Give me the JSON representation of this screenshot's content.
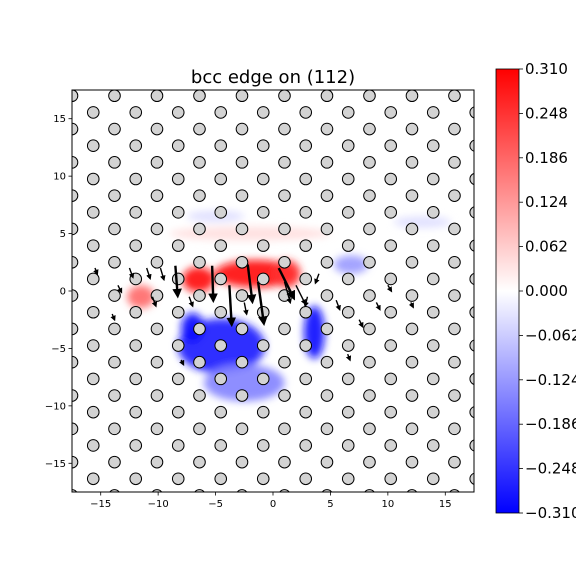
{
  "chart_data": {
    "type": "heatmap",
    "title": "bcc edge on (112)",
    "xlim": [
      -17.5,
      17.5
    ],
    "ylim": [
      -17.5,
      17.5
    ],
    "x_ticks": [
      -15,
      -10,
      -5,
      0,
      5,
      10,
      15
    ],
    "y_ticks": [
      -15,
      -10,
      -5,
      0,
      5,
      10,
      15
    ],
    "x_tick_labels": [
      "−15",
      "−10",
      "−5",
      "0",
      "5",
      "10",
      "15"
    ],
    "y_tick_labels": [
      "−15",
      "−10",
      "−5",
      "0",
      "5",
      "10",
      "15"
    ],
    "colorbar": {
      "cmap": "bwr",
      "vmin": -0.31,
      "vmax": 0.31,
      "ticks": [
        0.31,
        0.248,
        0.186,
        0.124,
        0.062,
        0.0,
        -0.062,
        -0.124,
        -0.186,
        -0.248,
        -0.31
      ],
      "tick_labels": [
        "0.310",
        "0.248",
        "0.186",
        "0.124",
        "0.062",
        "0.000",
        "−0.062",
        "−0.124",
        "−0.186",
        "−0.248",
        "−0.310"
      ],
      "colors": {
        "low": "#0000ff",
        "mid": "#ffffff",
        "high": "#ff0000"
      }
    },
    "atoms": {
      "lattice_a1": [
        3.7,
        0
      ],
      "lattice_a2": [
        1.85,
        1.45
      ],
      "origin": [
        1.0,
        -12.0
      ],
      "face_color": "#d3d3d3",
      "edge_color": "#000000"
    },
    "field_blobs": [
      {
        "x": -1.5,
        "y": 1.5,
        "sx": 3.6,
        "sy": 1.2,
        "value": 0.3
      },
      {
        "x": -6.5,
        "y": 1.0,
        "sx": 1.4,
        "sy": 1.1,
        "value": 0.3
      },
      {
        "x": 1.2,
        "y": 1.5,
        "sx": 1.2,
        "sy": 1.2,
        "value": 0.25
      },
      {
        "x": -11.5,
        "y": -0.5,
        "sx": 1.2,
        "sy": 1.0,
        "value": 0.18
      },
      {
        "x": -2.0,
        "y": 5.0,
        "sx": 7.0,
        "sy": 0.6,
        "value": 0.04
      },
      {
        "x": -4.5,
        "y": -4.8,
        "sx": 3.8,
        "sy": 2.4,
        "value": -0.27
      },
      {
        "x": -7.0,
        "y": -3.2,
        "sx": 1.0,
        "sy": 1.3,
        "value": -0.3
      },
      {
        "x": -2.5,
        "y": -8.0,
        "sx": 3.5,
        "sy": 1.6,
        "value": -0.15
      },
      {
        "x": 3.6,
        "y": -3.6,
        "sx": 0.9,
        "sy": 2.3,
        "value": -0.3
      },
      {
        "x": 6.8,
        "y": 2.3,
        "sx": 1.5,
        "sy": 0.8,
        "value": -0.12
      },
      {
        "x": -5.0,
        "y": 6.5,
        "sx": 2.5,
        "sy": 0.5,
        "value": -0.04
      },
      {
        "x": 13.0,
        "y": 6.0,
        "sx": 2.5,
        "sy": 0.5,
        "value": -0.04
      }
    ],
    "arrows": [
      {
        "x": -8.5,
        "y": 2.2,
        "dx": 0.2,
        "dy": -2.6
      },
      {
        "x": -5.3,
        "y": 2.2,
        "dx": 0.1,
        "dy": -3.0
      },
      {
        "x": -3.8,
        "y": 0.5,
        "dx": 0.2,
        "dy": -3.4
      },
      {
        "x": -2.2,
        "y": 2.3,
        "dx": 0.4,
        "dy": -3.2
      },
      {
        "x": -1.3,
        "y": 0.8,
        "dx": 0.5,
        "dy": -3.6
      },
      {
        "x": 0.5,
        "y": 2.0,
        "dx": 1.3,
        "dy": -2.6
      },
      {
        "x": 1.0,
        "y": 0.8,
        "dx": 0.5,
        "dy": -1.8
      },
      {
        "x": 2.0,
        "y": 0.5,
        "dx": 0.8,
        "dy": -1.6
      },
      {
        "x": -2.5,
        "y": -1.0,
        "dx": 0.2,
        "dy": -1.0
      },
      {
        "x": -12.5,
        "y": 2.0,
        "dx": 0.3,
        "dy": -0.8
      },
      {
        "x": -11.0,
        "y": 2.0,
        "dx": 0.3,
        "dy": -0.9
      },
      {
        "x": -9.8,
        "y": 2.0,
        "dx": 0.3,
        "dy": -1.0
      },
      {
        "x": -13.5,
        "y": 0.5,
        "dx": 0.3,
        "dy": -0.6
      },
      {
        "x": -7.3,
        "y": -0.5,
        "dx": 0.3,
        "dy": -0.8
      },
      {
        "x": -10.5,
        "y": -0.5,
        "dx": 0.3,
        "dy": -0.8
      },
      {
        "x": 4.0,
        "y": 1.5,
        "dx": -0.3,
        "dy": -0.8
      },
      {
        "x": 3.0,
        "y": -0.5,
        "dx": -0.2,
        "dy": -0.8
      },
      {
        "x": 5.5,
        "y": -0.8,
        "dx": 0.3,
        "dy": -0.8
      },
      {
        "x": 7.5,
        "y": -2.5,
        "dx": 0.3,
        "dy": -0.6
      },
      {
        "x": 9.0,
        "y": -1.0,
        "dx": 0.3,
        "dy": -0.6
      },
      {
        "x": 10.0,
        "y": 0.5,
        "dx": 0.3,
        "dy": -0.5
      },
      {
        "x": 12.0,
        "y": -1.0,
        "dx": 0.2,
        "dy": -0.4
      },
      {
        "x": -15.5,
        "y": 2.0,
        "dx": 0.2,
        "dy": -0.5
      },
      {
        "x": -14.0,
        "y": -2.0,
        "dx": 0.2,
        "dy": -0.5
      },
      {
        "x": 6.5,
        "y": -5.5,
        "dx": 0.2,
        "dy": -0.5
      },
      {
        "x": -8.0,
        "y": -6.0,
        "dx": 0.2,
        "dy": -0.4
      }
    ]
  }
}
